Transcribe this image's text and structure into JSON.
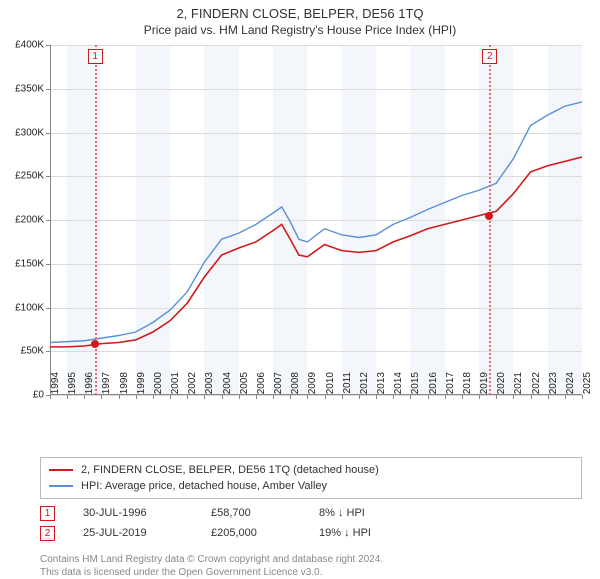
{
  "title": "2, FINDERN CLOSE, BELPER, DE56 1TQ",
  "subtitle": "Price paid vs. HM Land Registry's House Price Index (HPI)",
  "chart": {
    "type": "line",
    "background_color": "#ffffff",
    "alt_band_color": "#f3f6fb",
    "grid_color": "#dcdcdc",
    "ylim": [
      0,
      400000
    ],
    "ytick_step": 50000,
    "ylabels": [
      "£0",
      "£50K",
      "£100K",
      "£150K",
      "£200K",
      "£250K",
      "£300K",
      "£350K",
      "£400K"
    ],
    "xrange": [
      1994,
      2025
    ],
    "xticks": [
      1994,
      1995,
      1996,
      1997,
      1998,
      1999,
      2000,
      2001,
      2002,
      2003,
      2004,
      2005,
      2006,
      2007,
      2008,
      2009,
      2010,
      2011,
      2012,
      2013,
      2014,
      2015,
      2016,
      2017,
      2018,
      2019,
      2020,
      2021,
      2022,
      2023,
      2024,
      2025
    ],
    "series": [
      {
        "name": "2, FINDERN CLOSE, BELPER, DE56 1TQ (detached house)",
        "color": "#d11919",
        "line_width": 1.6,
        "data": [
          [
            1994,
            55000
          ],
          [
            1995,
            55000
          ],
          [
            1996,
            56000
          ],
          [
            1997,
            58700
          ],
          [
            1998,
            60000
          ],
          [
            1999,
            63000
          ],
          [
            2000,
            72000
          ],
          [
            2001,
            85000
          ],
          [
            2002,
            105000
          ],
          [
            2003,
            135000
          ],
          [
            2004,
            160000
          ],
          [
            2005,
            168000
          ],
          [
            2006,
            175000
          ],
          [
            2007,
            188000
          ],
          [
            2007.5,
            195000
          ],
          [
            2008,
            178000
          ],
          [
            2008.5,
            160000
          ],
          [
            2009,
            158000
          ],
          [
            2010,
            172000
          ],
          [
            2011,
            165000
          ],
          [
            2012,
            163000
          ],
          [
            2013,
            165000
          ],
          [
            2014,
            175000
          ],
          [
            2015,
            182000
          ],
          [
            2016,
            190000
          ],
          [
            2017,
            195000
          ],
          [
            2018,
            200000
          ],
          [
            2019,
            205000
          ],
          [
            2020,
            210000
          ],
          [
            2021,
            230000
          ],
          [
            2022,
            255000
          ],
          [
            2023,
            262000
          ],
          [
            2024,
            267000
          ],
          [
            2025,
            272000
          ]
        ]
      },
      {
        "name": "HPI: Average price, detached house, Amber Valley",
        "color": "#5b8fd6",
        "line_width": 1.4,
        "data": [
          [
            1994,
            60000
          ],
          [
            1995,
            61000
          ],
          [
            1996,
            62000
          ],
          [
            1997,
            65000
          ],
          [
            1998,
            68000
          ],
          [
            1999,
            72000
          ],
          [
            2000,
            83000
          ],
          [
            2001,
            97000
          ],
          [
            2002,
            118000
          ],
          [
            2003,
            152000
          ],
          [
            2004,
            178000
          ],
          [
            2005,
            185000
          ],
          [
            2006,
            195000
          ],
          [
            2007,
            208000
          ],
          [
            2007.5,
            215000
          ],
          [
            2008,
            198000
          ],
          [
            2008.5,
            178000
          ],
          [
            2009,
            175000
          ],
          [
            2010,
            190000
          ],
          [
            2011,
            183000
          ],
          [
            2012,
            180000
          ],
          [
            2013,
            183000
          ],
          [
            2014,
            195000
          ],
          [
            2015,
            203000
          ],
          [
            2016,
            212000
          ],
          [
            2017,
            220000
          ],
          [
            2018,
            228000
          ],
          [
            2019,
            234000
          ],
          [
            2020,
            242000
          ],
          [
            2021,
            270000
          ],
          [
            2022,
            308000
          ],
          [
            2023,
            320000
          ],
          [
            2024,
            330000
          ],
          [
            2025,
            335000
          ]
        ]
      }
    ],
    "markers": [
      {
        "id": "1",
        "x": 1996.6,
        "price": 58700
      },
      {
        "id": "2",
        "x": 2019.6,
        "price": 205000
      }
    ]
  },
  "legend": {
    "items": [
      {
        "color": "#d11919",
        "label": "2, FINDERN CLOSE, BELPER, DE56 1TQ (detached house)"
      },
      {
        "color": "#5b8fd6",
        "label": "HPI: Average price, detached house, Amber Valley"
      }
    ]
  },
  "sales": [
    {
      "id": "1",
      "date": "30-JUL-1996",
      "price": "£58,700",
      "diff": "8% ↓ HPI"
    },
    {
      "id": "2",
      "date": "25-JUL-2019",
      "price": "£205,000",
      "diff": "19% ↓ HPI"
    }
  ],
  "footer_line1": "Contains HM Land Registry data © Crown copyright and database right 2024.",
  "footer_line2": "This data is licensed under the Open Government Licence v3.0."
}
